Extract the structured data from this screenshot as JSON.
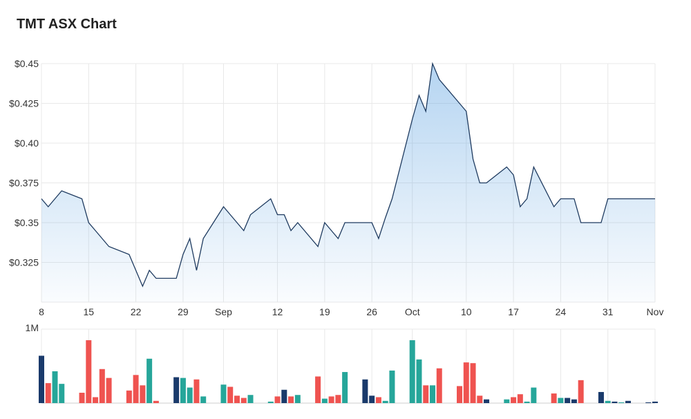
{
  "chart_data": {
    "type": "line",
    "title": "TMT ASX Chart",
    "price": {
      "ylim": [
        0.3,
        0.45
      ],
      "y_ticks": [
        0.325,
        0.35,
        0.375,
        0.4,
        0.425,
        0.45
      ],
      "y_tick_labels": [
        "$0.325",
        "$0.35",
        "$0.375",
        "$0.40",
        "$0.425",
        "$0.45"
      ],
      "x_range": [
        "2023-08-08",
        "2023-11-07"
      ],
      "x_ticks": [
        {
          "date": "2023-08-08",
          "label": "8"
        },
        {
          "date": "2023-08-15",
          "label": "15"
        },
        {
          "date": "2023-08-22",
          "label": "22"
        },
        {
          "date": "2023-08-29",
          "label": "29"
        },
        {
          "date": "2023-09-04",
          "label": "Sep"
        },
        {
          "date": "2023-09-12",
          "label": "12"
        },
        {
          "date": "2023-09-19",
          "label": "19"
        },
        {
          "date": "2023-09-26",
          "label": "26"
        },
        {
          "date": "2023-10-02",
          "label": "Oct"
        },
        {
          "date": "2023-10-10",
          "label": "10"
        },
        {
          "date": "2023-10-17",
          "label": "17"
        },
        {
          "date": "2023-10-24",
          "label": "24"
        },
        {
          "date": "2023-10-31",
          "label": "31"
        },
        {
          "date": "2023-11-07",
          "label": "Nov"
        }
      ],
      "points": [
        [
          "2023-08-08",
          0.365
        ],
        [
          "2023-08-09",
          0.36
        ],
        [
          "2023-08-10",
          0.365
        ],
        [
          "2023-08-11",
          0.37
        ],
        [
          "2023-08-14",
          0.365
        ],
        [
          "2023-08-15",
          0.35
        ],
        [
          "2023-08-16",
          0.345
        ],
        [
          "2023-08-17",
          0.34
        ],
        [
          "2023-08-18",
          0.335
        ],
        [
          "2023-08-21",
          0.33
        ],
        [
          "2023-08-22",
          0.32
        ],
        [
          "2023-08-23",
          0.31
        ],
        [
          "2023-08-24",
          0.32
        ],
        [
          "2023-08-25",
          0.315
        ],
        [
          "2023-08-28",
          0.315
        ],
        [
          "2023-08-29",
          0.33
        ],
        [
          "2023-08-30",
          0.34
        ],
        [
          "2023-08-31",
          0.32
        ],
        [
          "2023-09-01",
          0.34
        ],
        [
          "2023-09-04",
          0.36
        ],
        [
          "2023-09-05",
          0.355
        ],
        [
          "2023-09-06",
          0.35
        ],
        [
          "2023-09-07",
          0.345
        ],
        [
          "2023-09-08",
          0.355
        ],
        [
          "2023-09-11",
          0.365
        ],
        [
          "2023-09-12",
          0.355
        ],
        [
          "2023-09-13",
          0.355
        ],
        [
          "2023-09-14",
          0.345
        ],
        [
          "2023-09-15",
          0.35
        ],
        [
          "2023-09-18",
          0.335
        ],
        [
          "2023-09-19",
          0.35
        ],
        [
          "2023-09-20",
          0.345
        ],
        [
          "2023-09-21",
          0.34
        ],
        [
          "2023-09-22",
          0.35
        ],
        [
          "2023-09-25",
          0.35
        ],
        [
          "2023-09-26",
          0.35
        ],
        [
          "2023-09-27",
          0.34
        ],
        [
          "2023-09-28",
          0.353
        ],
        [
          "2023-09-29",
          0.365
        ],
        [
          "2023-10-02",
          0.415
        ],
        [
          "2023-10-03",
          0.43
        ],
        [
          "2023-10-04",
          0.42
        ],
        [
          "2023-10-05",
          0.45
        ],
        [
          "2023-10-06",
          0.44
        ],
        [
          "2023-10-09",
          0.425
        ],
        [
          "2023-10-10",
          0.42
        ],
        [
          "2023-10-11",
          0.39
        ],
        [
          "2023-10-12",
          0.375
        ],
        [
          "2023-10-13",
          0.375
        ],
        [
          "2023-10-16",
          0.385
        ],
        [
          "2023-10-17",
          0.38
        ],
        [
          "2023-10-18",
          0.36
        ],
        [
          "2023-10-19",
          0.365
        ],
        [
          "2023-10-20",
          0.385
        ],
        [
          "2023-10-23",
          0.36
        ],
        [
          "2023-10-24",
          0.365
        ],
        [
          "2023-10-25",
          0.365
        ],
        [
          "2023-10-26",
          0.365
        ],
        [
          "2023-10-27",
          0.35
        ],
        [
          "2023-10-30",
          0.35
        ],
        [
          "2023-10-31",
          0.365
        ],
        [
          "2023-11-01",
          0.365
        ],
        [
          "2023-11-02",
          0.365
        ],
        [
          "2023-11-03",
          0.365
        ],
        [
          "2023-11-06",
          0.365
        ],
        [
          "2023-11-07",
          0.365
        ]
      ],
      "line_color": "#1e3a5f",
      "fill_color": "#5aa0e0"
    },
    "volume": {
      "ylim": [
        0,
        1000000
      ],
      "y_tick_label": "1M",
      "colors": {
        "up": "#26a69a",
        "down": "#ef5350",
        "unchanged": "#1a3a6b"
      },
      "bars": [
        [
          "2023-08-08",
          640000,
          "unchanged"
        ],
        [
          "2023-08-09",
          270000,
          "down"
        ],
        [
          "2023-08-10",
          430000,
          "up"
        ],
        [
          "2023-08-11",
          260000,
          "up"
        ],
        [
          "2023-08-14",
          140000,
          "down"
        ],
        [
          "2023-08-15",
          850000,
          "down"
        ],
        [
          "2023-08-16",
          80000,
          "down"
        ],
        [
          "2023-08-17",
          460000,
          "down"
        ],
        [
          "2023-08-18",
          340000,
          "down"
        ],
        [
          "2023-08-21",
          170000,
          "down"
        ],
        [
          "2023-08-22",
          380000,
          "down"
        ],
        [
          "2023-08-23",
          240000,
          "down"
        ],
        [
          "2023-08-24",
          600000,
          "up"
        ],
        [
          "2023-08-25",
          30000,
          "down"
        ],
        [
          "2023-08-28",
          350000,
          "unchanged"
        ],
        [
          "2023-08-29",
          340000,
          "up"
        ],
        [
          "2023-08-30",
          210000,
          "up"
        ],
        [
          "2023-08-31",
          320000,
          "down"
        ],
        [
          "2023-09-01",
          90000,
          "up"
        ],
        [
          "2023-09-04",
          250000,
          "up"
        ],
        [
          "2023-09-05",
          220000,
          "down"
        ],
        [
          "2023-09-06",
          100000,
          "down"
        ],
        [
          "2023-09-07",
          70000,
          "down"
        ],
        [
          "2023-09-08",
          110000,
          "up"
        ],
        [
          "2023-09-11",
          20000,
          "up"
        ],
        [
          "2023-09-12",
          90000,
          "down"
        ],
        [
          "2023-09-13",
          180000,
          "unchanged"
        ],
        [
          "2023-09-14",
          90000,
          "down"
        ],
        [
          "2023-09-15",
          110000,
          "up"
        ],
        [
          "2023-09-18",
          360000,
          "down"
        ],
        [
          "2023-09-19",
          60000,
          "up"
        ],
        [
          "2023-09-20",
          90000,
          "down"
        ],
        [
          "2023-09-21",
          110000,
          "down"
        ],
        [
          "2023-09-22",
          420000,
          "up"
        ],
        [
          "2023-09-25",
          320000,
          "unchanged"
        ],
        [
          "2023-09-26",
          100000,
          "unchanged"
        ],
        [
          "2023-09-27",
          80000,
          "down"
        ],
        [
          "2023-09-28",
          30000,
          "up"
        ],
        [
          "2023-09-29",
          440000,
          "up"
        ],
        [
          "2023-10-02",
          850000,
          "up"
        ],
        [
          "2023-10-03",
          590000,
          "up"
        ],
        [
          "2023-10-04",
          240000,
          "down"
        ],
        [
          "2023-10-05",
          240000,
          "up"
        ],
        [
          "2023-10-06",
          470000,
          "down"
        ],
        [
          "2023-10-09",
          230000,
          "down"
        ],
        [
          "2023-10-10",
          550000,
          "down"
        ],
        [
          "2023-10-11",
          540000,
          "down"
        ],
        [
          "2023-10-12",
          100000,
          "down"
        ],
        [
          "2023-10-13",
          50000,
          "unchanged"
        ],
        [
          "2023-10-16",
          50000,
          "up"
        ],
        [
          "2023-10-17",
          80000,
          "down"
        ],
        [
          "2023-10-18",
          120000,
          "down"
        ],
        [
          "2023-10-19",
          20000,
          "up"
        ],
        [
          "2023-10-20",
          210000,
          "up"
        ],
        [
          "2023-10-23",
          130000,
          "down"
        ],
        [
          "2023-10-24",
          70000,
          "up"
        ],
        [
          "2023-10-25",
          70000,
          "unchanged"
        ],
        [
          "2023-10-26",
          50000,
          "unchanged"
        ],
        [
          "2023-10-27",
          310000,
          "down"
        ],
        [
          "2023-10-30",
          150000,
          "unchanged"
        ],
        [
          "2023-10-31",
          30000,
          "up"
        ],
        [
          "2023-11-01",
          20000,
          "unchanged"
        ],
        [
          "2023-11-02",
          10000,
          "up"
        ],
        [
          "2023-11-03",
          30000,
          "unchanged"
        ],
        [
          "2023-11-06",
          10000,
          "unchanged"
        ],
        [
          "2023-11-07",
          20000,
          "unchanged"
        ]
      ]
    },
    "grid": true
  }
}
